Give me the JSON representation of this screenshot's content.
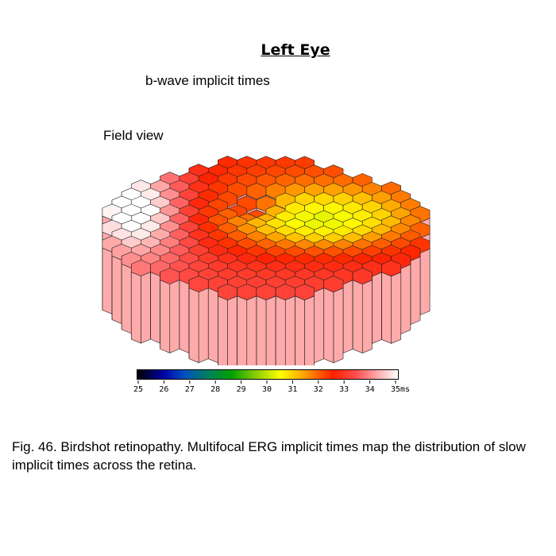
{
  "figure": {
    "title": "Left Eye",
    "subtitle": "b-wave implicit times",
    "view_label": "Field view"
  },
  "color_scale": {
    "ticks": [
      "25",
      "26",
      "27",
      "28",
      "29",
      "30",
      "31",
      "32",
      "33",
      "34",
      "35ms"
    ],
    "colors": [
      "#000000",
      "#0000a8",
      "#008060",
      "#00a000",
      "#90d000",
      "#ffff00",
      "#ffa000",
      "#ff2000",
      "#ff5050",
      "#ffa8a8",
      "#ffffff"
    ]
  },
  "caption": "Fig. 46. Birdshot retinopathy. Multifocal ERG implicit times map the distribution of slow implicit times across the retina."
}
